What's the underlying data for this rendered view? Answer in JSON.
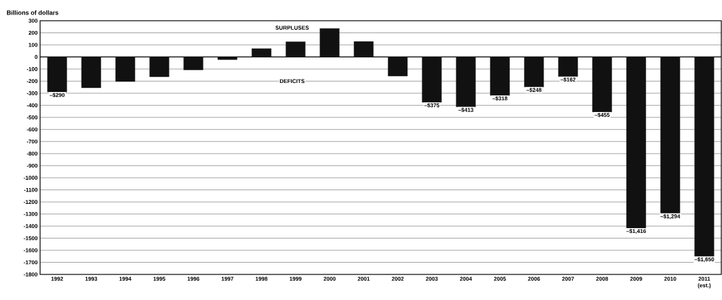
{
  "chart_data": {
    "type": "bar",
    "ylabel": "Billions of dollars",
    "categories": [
      "1992",
      "1993",
      "1994",
      "1995",
      "1996",
      "1997",
      "1998",
      "1999",
      "2000",
      "2001",
      "2002",
      "2003",
      "2004",
      "2005",
      "2006",
      "2007",
      "2008",
      "2009",
      "2010",
      "2011 (est.)"
    ],
    "values": [
      -290,
      -255,
      -203,
      -164,
      -107,
      -22,
      69,
      126,
      236,
      128,
      -158,
      -375,
      -413,
      -318,
      -248,
      -162,
      -455,
      -1416,
      -1294,
      -1650
    ],
    "value_labels": [
      "–$290",
      null,
      null,
      null,
      null,
      null,
      null,
      null,
      null,
      null,
      null,
      "–$375",
      "–$413",
      "–$318",
      "–$248",
      "–$162",
      "–$455",
      "–$1,416",
      "–$1,294",
      "–$1,650"
    ],
    "color": "#111111",
    "ylim": [
      -1800,
      300
    ],
    "yticks": [
      300,
      200,
      100,
      0,
      -100,
      -200,
      -300,
      -400,
      -500,
      -600,
      -700,
      -800,
      -900,
      -1000,
      -1100,
      -1200,
      -1300,
      -1400,
      -1500,
      -1600,
      -1700,
      -1800
    ],
    "annotations": [
      "SURPLUSES",
      "DEFICITS"
    ],
    "grid": "y"
  }
}
